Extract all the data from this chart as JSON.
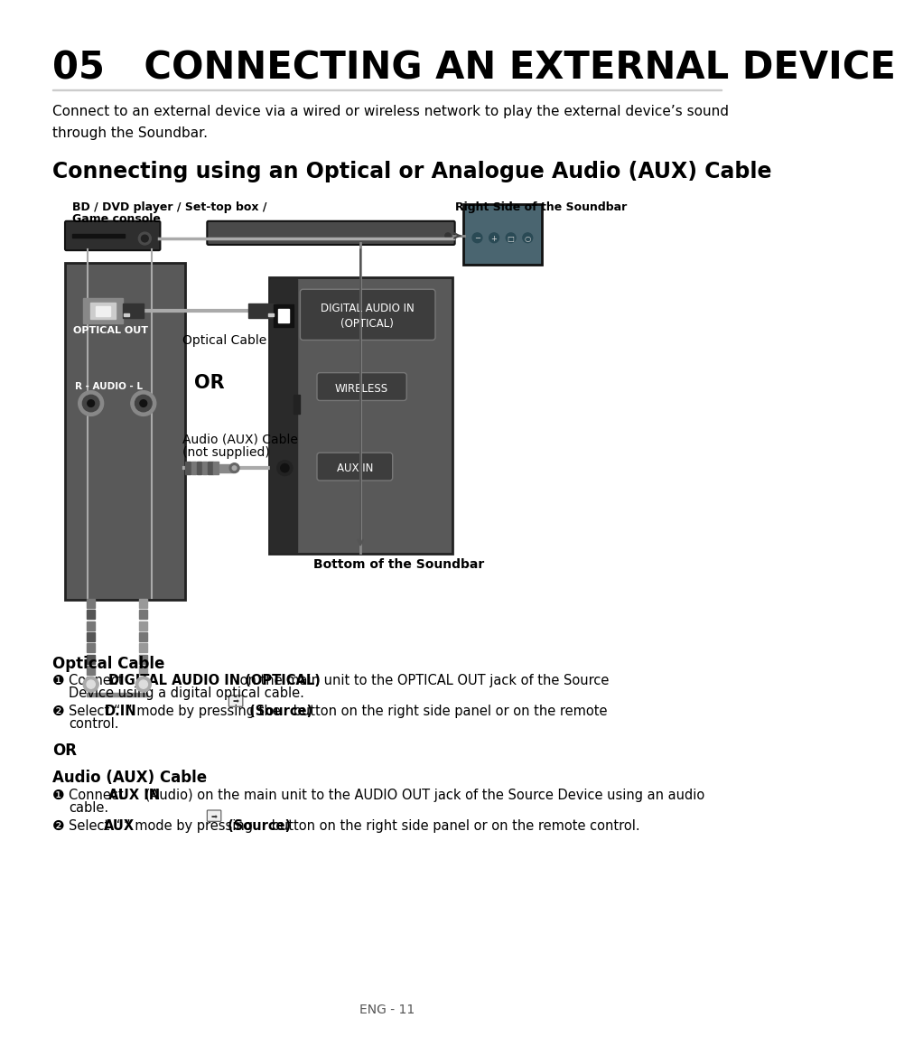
{
  "title": "05   CONNECTING AN EXTERNAL DEVICE",
  "intro_text": "Connect to an external device via a wired or wireless network to play the external device’s sound\nthrough the Soundbar.",
  "section_title": "Connecting using an Optical or Analogue Audio (AUX) Cable",
  "label_bd": "BD / DVD player / Set-top box /\nGame console",
  "label_right_side": "Right Side of the Soundbar",
  "label_optical_out": "OPTICAL OUT",
  "label_optical_cable": "Optical Cable",
  "label_or_diagram": "OR",
  "label_audio_aux_line1": "Audio (AUX) Cable",
  "label_audio_aux_line2": "(not supplied)",
  "label_bottom_soundbar": "Bottom of the Soundbar",
  "label_digital_audio": "DIGITAL AUDIO IN\n(OPTICAL)",
  "label_wireless": "WIRELESS",
  "label_aux_in": "AUX IN",
  "label_r_audio_l": "R - AUDIO - L",
  "footer": "ENG - 11",
  "bg_color": "#ffffff",
  "text_color": "#000000",
  "gray_panel": "#595959",
  "dark_panel": "#3a3a3a",
  "darker": "#2a2a2a",
  "teal_panel": "#4a6570",
  "label_box_color": "#3d3d3d",
  "wire_color": "#aaaaaa",
  "connector_dark": "#333333",
  "connector_mid": "#555555",
  "connector_light": "#888888"
}
